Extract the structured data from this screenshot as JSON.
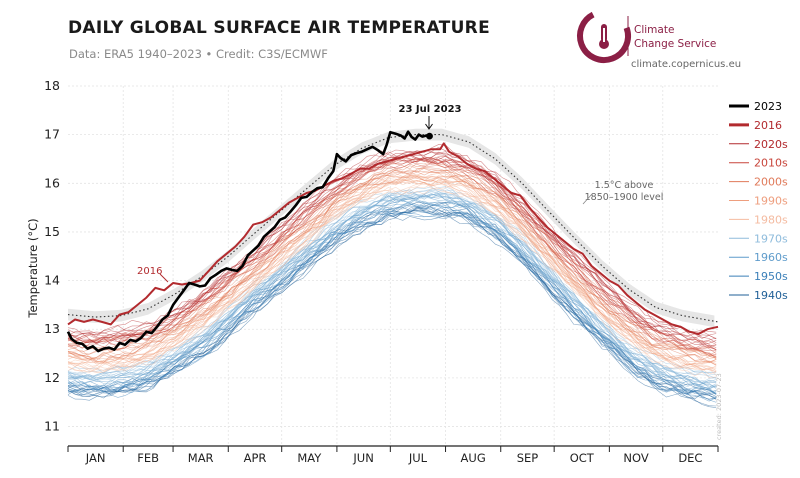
{
  "header": {
    "title": "DAILY GLOBAL SURFACE AIR TEMPERATURE",
    "subtitle": "Data: ERA5 1940–2023 • Credit: C3S/ECMWF"
  },
  "logo": {
    "line1": "Climate",
    "line2": "Change Service",
    "url": "climate.copernicus.eu",
    "color": "#8b1f45"
  },
  "created_note": "created: 2023-07-23",
  "chart_data": {
    "type": "line",
    "title": "DAILY GLOBAL SURFACE AIR TEMPERATURE",
    "xlabel": "",
    "ylabel": "Temperature (°C)",
    "ylim": [
      10.6,
      18
    ],
    "yticks": [
      "11",
      "12",
      "13",
      "14",
      "15",
      "16",
      "17",
      "18"
    ],
    "ytick_values": [
      11,
      12,
      13,
      14,
      15,
      16,
      17,
      18
    ],
    "xlim": [
      1,
      366
    ],
    "months": [
      "JAN",
      "FEB",
      "MAR",
      "APR",
      "MAY",
      "JUN",
      "JUL",
      "AUG",
      "SEP",
      "OCT",
      "NOV",
      "DEC"
    ],
    "grid": true,
    "legend_position": "right",
    "legend": [
      {
        "label": "2023",
        "color": "#000000",
        "bold": true
      },
      {
        "label": "2016",
        "color": "#b22a2e",
        "bold": true
      },
      {
        "label": "2020s",
        "color": "#b22a2e"
      },
      {
        "label": "2010s",
        "color": "#c8453b"
      },
      {
        "label": "2000s",
        "color": "#e07a5a"
      },
      {
        "label": "1990s",
        "color": "#ee9e7e"
      },
      {
        "label": "1980s",
        "color": "#f4bba1"
      },
      {
        "label": "1970s",
        "color": "#8fbcdc"
      },
      {
        "label": "1960s",
        "color": "#5f9ccb"
      },
      {
        "label": "1950s",
        "color": "#3a7fb8"
      },
      {
        "label": "1940s",
        "color": "#1f5f97"
      }
    ],
    "annotations": {
      "label_2023": "23 Jul 2023",
      "label_2016": "2016",
      "threshold_line1": "1.5°C above",
      "threshold_line2": "1850–1900 level"
    },
    "series": [
      {
        "name": "2023",
        "color": "#000000",
        "points": [
          [
            1,
            12.95
          ],
          [
            3,
            12.8
          ],
          [
            6,
            12.72
          ],
          [
            9,
            12.7
          ],
          [
            12,
            12.6
          ],
          [
            15,
            12.65
          ],
          [
            18,
            12.55
          ],
          [
            21,
            12.6
          ],
          [
            24,
            12.62
          ],
          [
            27,
            12.58
          ],
          [
            30,
            12.72
          ],
          [
            33,
            12.68
          ],
          [
            36,
            12.78
          ],
          [
            39,
            12.75
          ],
          [
            42,
            12.82
          ],
          [
            45,
            12.95
          ],
          [
            48,
            12.92
          ],
          [
            51,
            13.05
          ],
          [
            54,
            13.2
          ],
          [
            57,
            13.28
          ],
          [
            60,
            13.5
          ],
          [
            63,
            13.65
          ],
          [
            66,
            13.8
          ],
          [
            69,
            13.95
          ],
          [
            72,
            13.92
          ],
          [
            75,
            13.88
          ],
          [
            78,
            13.9
          ],
          [
            81,
            14.05
          ],
          [
            84,
            14.12
          ],
          [
            87,
            14.2
          ],
          [
            90,
            14.25
          ],
          [
            93,
            14.22
          ],
          [
            96,
            14.2
          ],
          [
            99,
            14.3
          ],
          [
            102,
            14.52
          ],
          [
            105,
            14.62
          ],
          [
            108,
            14.72
          ],
          [
            111,
            14.9
          ],
          [
            114,
            15.0
          ],
          [
            117,
            15.1
          ],
          [
            120,
            15.25
          ],
          [
            123,
            15.3
          ],
          [
            126,
            15.42
          ],
          [
            129,
            15.55
          ],
          [
            132,
            15.7
          ],
          [
            135,
            15.72
          ],
          [
            138,
            15.82
          ],
          [
            141,
            15.9
          ],
          [
            144,
            15.92
          ],
          [
            147,
            16.1
          ],
          [
            150,
            16.25
          ],
          [
            152,
            16.6
          ],
          [
            154,
            16.52
          ],
          [
            157,
            16.45
          ],
          [
            160,
            16.58
          ],
          [
            163,
            16.62
          ],
          [
            166,
            16.65
          ],
          [
            169,
            16.7
          ],
          [
            172,
            16.75
          ],
          [
            175,
            16.68
          ],
          [
            178,
            16.6
          ],
          [
            180,
            16.8
          ],
          [
            182,
            17.05
          ],
          [
            185,
            17.02
          ],
          [
            188,
            16.98
          ],
          [
            190,
            16.92
          ],
          [
            192,
            17.06
          ],
          [
            194,
            16.95
          ],
          [
            196,
            16.9
          ],
          [
            198,
            17.0
          ],
          [
            200,
            16.96
          ],
          [
            202,
            16.98
          ],
          [
            204,
            16.97
          ]
        ]
      },
      {
        "name": "2016",
        "color": "#b22a2e",
        "points": [
          [
            1,
            13.1
          ],
          [
            5,
            13.2
          ],
          [
            10,
            13.15
          ],
          [
            15,
            13.2
          ],
          [
            20,
            13.15
          ],
          [
            25,
            13.1
          ],
          [
            30,
            13.3
          ],
          [
            35,
            13.35
          ],
          [
            40,
            13.5
          ],
          [
            45,
            13.65
          ],
          [
            50,
            13.85
          ],
          [
            55,
            13.8
          ],
          [
            60,
            13.95
          ],
          [
            65,
            13.92
          ],
          [
            70,
            13.95
          ],
          [
            75,
            14.0
          ],
          [
            80,
            14.2
          ],
          [
            85,
            14.4
          ],
          [
            90,
            14.55
          ],
          [
            95,
            14.7
          ],
          [
            100,
            14.9
          ],
          [
            105,
            15.15
          ],
          [
            110,
            15.2
          ],
          [
            115,
            15.3
          ],
          [
            120,
            15.45
          ],
          [
            125,
            15.6
          ],
          [
            130,
            15.7
          ],
          [
            135,
            15.8
          ],
          [
            140,
            15.85
          ],
          [
            145,
            15.95
          ],
          [
            150,
            16.05
          ],
          [
            155,
            16.1
          ],
          [
            160,
            16.2
          ],
          [
            165,
            16.3
          ],
          [
            170,
            16.3
          ],
          [
            175,
            16.4
          ],
          [
            180,
            16.45
          ],
          [
            185,
            16.5
          ],
          [
            190,
            16.55
          ],
          [
            195,
            16.6
          ],
          [
            200,
            16.65
          ],
          [
            205,
            16.7
          ],
          [
            210,
            16.7
          ],
          [
            212,
            16.82
          ],
          [
            215,
            16.65
          ],
          [
            220,
            16.55
          ],
          [
            225,
            16.4
          ],
          [
            230,
            16.3
          ],
          [
            235,
            16.25
          ],
          [
            240,
            16.1
          ],
          [
            245,
            15.95
          ],
          [
            250,
            15.8
          ],
          [
            255,
            15.75
          ],
          [
            260,
            15.5
          ],
          [
            265,
            15.3
          ],
          [
            270,
            15.1
          ],
          [
            275,
            14.95
          ],
          [
            280,
            14.8
          ],
          [
            285,
            14.65
          ],
          [
            290,
            14.55
          ],
          [
            295,
            14.3
          ],
          [
            300,
            14.15
          ],
          [
            305,
            14.0
          ],
          [
            310,
            13.9
          ],
          [
            315,
            13.7
          ],
          [
            320,
            13.55
          ],
          [
            325,
            13.4
          ],
          [
            330,
            13.3
          ],
          [
            335,
            13.2
          ],
          [
            340,
            13.1
          ],
          [
            345,
            13.05
          ],
          [
            350,
            12.95
          ],
          [
            355,
            12.9
          ],
          [
            360,
            13.0
          ],
          [
            366,
            13.05
          ]
        ]
      },
      {
        "name": "1.5°C above 1850–1900 level",
        "color": "#333333",
        "points": [
          [
            1,
            13.3
          ],
          [
            16,
            13.25
          ],
          [
            31,
            13.28
          ],
          [
            46,
            13.42
          ],
          [
            61,
            13.72
          ],
          [
            76,
            14.08
          ],
          [
            91,
            14.5
          ],
          [
            106,
            14.98
          ],
          [
            121,
            15.45
          ],
          [
            136,
            15.92
          ],
          [
            151,
            16.38
          ],
          [
            166,
            16.72
          ],
          [
            181,
            16.94
          ],
          [
            196,
            17.0
          ],
          [
            211,
            17.0
          ],
          [
            226,
            16.85
          ],
          [
            241,
            16.5
          ],
          [
            256,
            16.0
          ],
          [
            271,
            15.42
          ],
          [
            286,
            14.85
          ],
          [
            301,
            14.3
          ],
          [
            316,
            13.82
          ],
          [
            331,
            13.45
          ],
          [
            346,
            13.28
          ],
          [
            366,
            13.15
          ]
        ]
      }
    ],
    "decade_bands": [
      {
        "name": "1940s",
        "color": "#1f5f97",
        "offset": -1.05
      },
      {
        "name": "1950s",
        "color": "#3a7fb8",
        "offset": -0.95
      },
      {
        "name": "1960s",
        "color": "#5f9ccb",
        "offset": -0.82
      },
      {
        "name": "1970s",
        "color": "#8fbcdc",
        "offset": -0.7
      },
      {
        "name": "1980s",
        "color": "#f4bba1",
        "offset": -0.5
      },
      {
        "name": "1990s",
        "color": "#ee9e7e",
        "offset": -0.35
      },
      {
        "name": "2000s",
        "color": "#e07a5a",
        "offset": -0.2
      },
      {
        "name": "2010s",
        "color": "#c8453b",
        "offset": -0.05
      },
      {
        "name": "2020s",
        "color": "#b22a2e",
        "offset": 0.1
      }
    ]
  }
}
